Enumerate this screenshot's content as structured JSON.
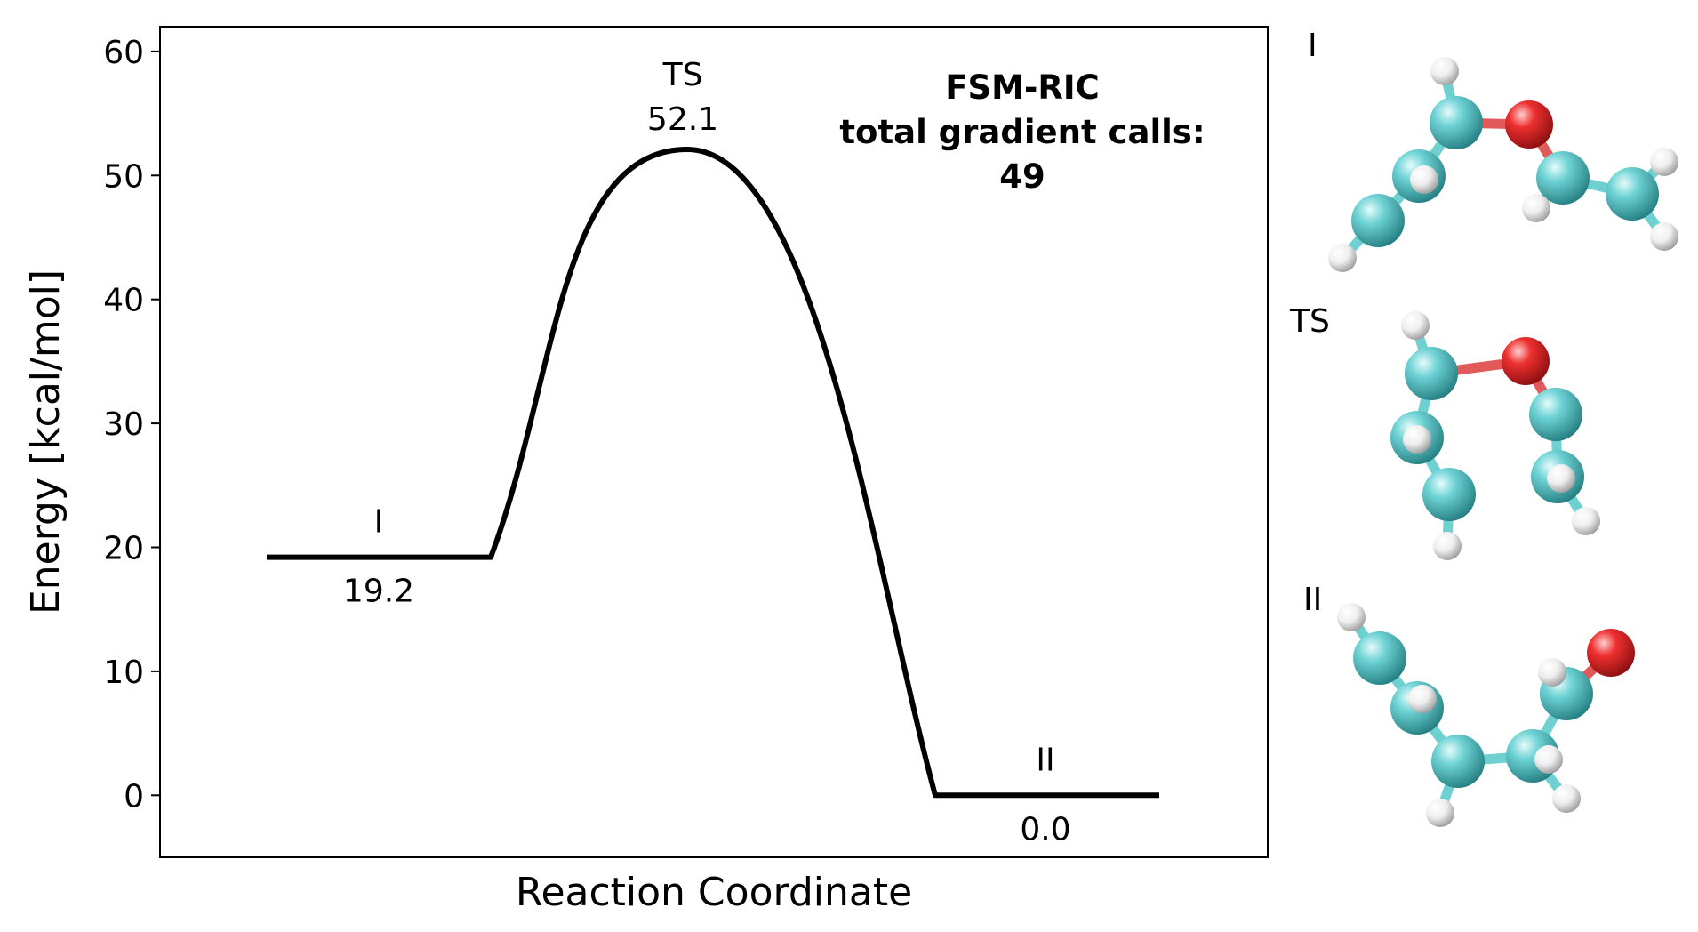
{
  "chart_data": {
    "type": "line",
    "title": "",
    "xlabel": "Reaction Coordinate",
    "ylabel": "Energy [kcal/mol]",
    "ylim": [
      -5,
      62
    ],
    "yticks": [
      0,
      10,
      20,
      30,
      40,
      50,
      60
    ],
    "grid": false,
    "legend": "none",
    "states": [
      {
        "label": "I",
        "energy": 19.2,
        "value_label": "19.2"
      },
      {
        "label": "TS",
        "energy": 52.1,
        "value_label": "52.1"
      },
      {
        "label": "II",
        "energy": 0.0,
        "value_label": "0.0"
      }
    ],
    "annotation": {
      "lines": [
        "FSM-RIC",
        "total gradient calls:",
        "49"
      ]
    },
    "line_color": "#000000"
  },
  "structures": [
    {
      "label": "I"
    },
    {
      "label": "TS"
    },
    {
      "label": "II"
    }
  ],
  "atom_colors": {
    "carbon": "#5fc6c8",
    "oxygen": "#e8262b",
    "hydrogen": "#f2f2f2",
    "bond_carbon": "#6fd0d2",
    "bond_oxygen": "#e05a5a"
  }
}
